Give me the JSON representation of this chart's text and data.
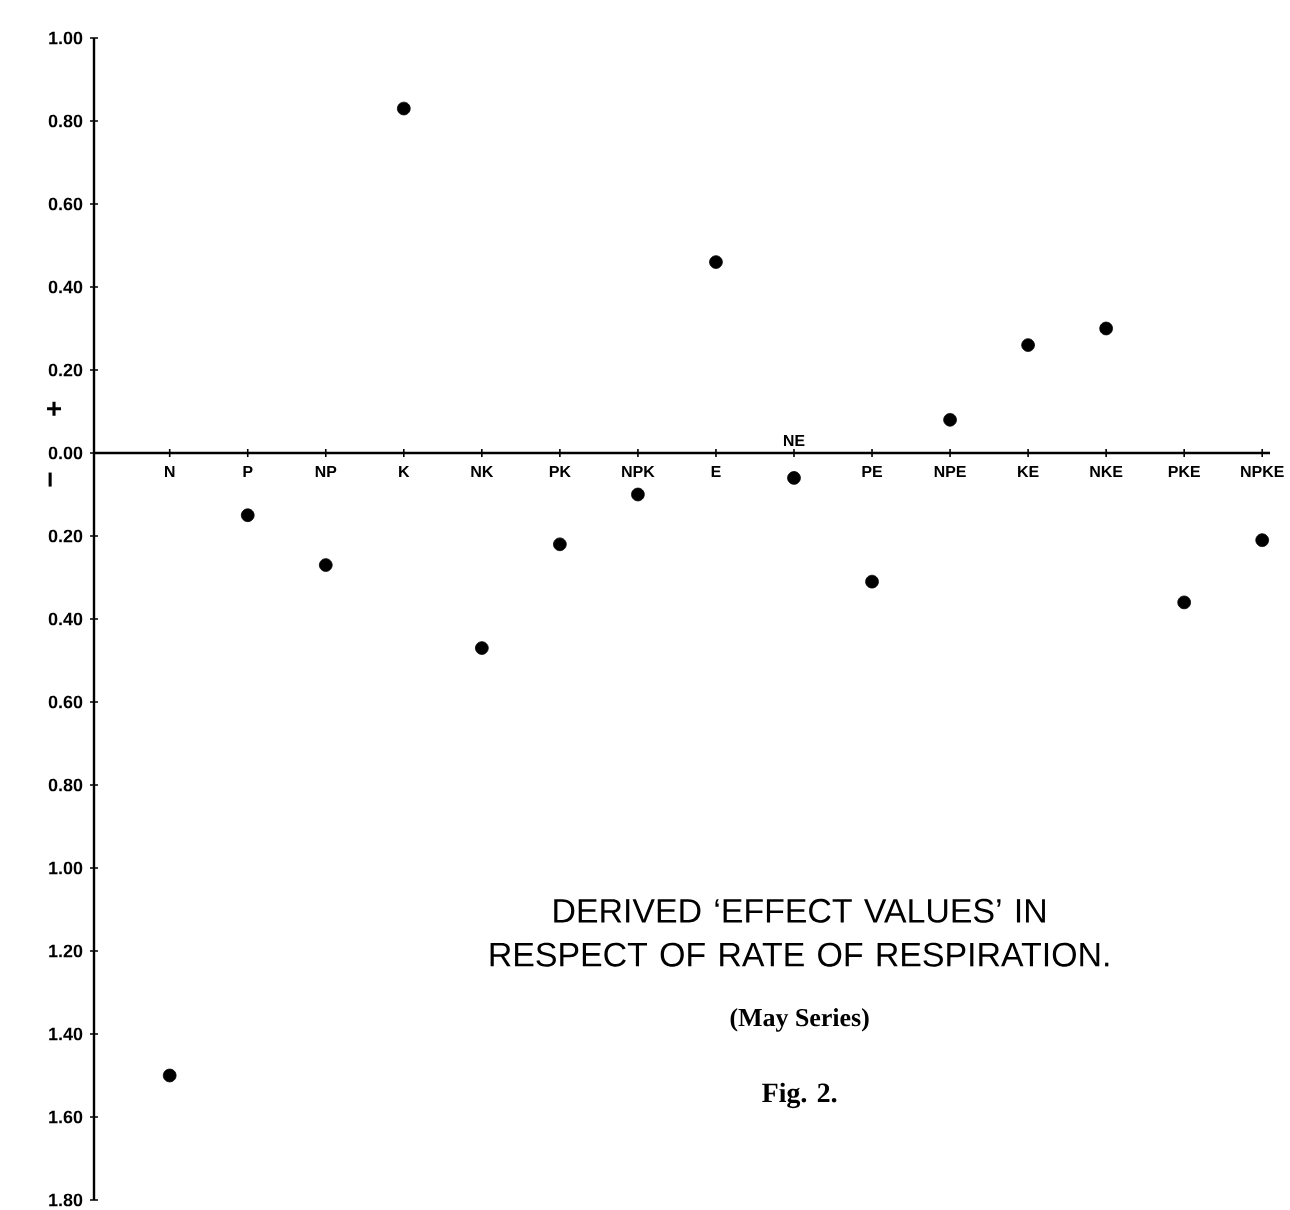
{
  "chart_data": {
    "type": "scatter",
    "title": "DERIVED ‘EFFECT VALUES’ IN RESPECT OF RATE OF RESPIRATION.",
    "subtitle": "(May Series)",
    "annotations": [
      "Fig. 2.",
      "+",
      "−"
    ],
    "categories": [
      "N",
      "P",
      "NP",
      "K",
      "NK",
      "PK",
      "NPK",
      "E",
      "NE",
      "PE",
      "NPE",
      "KE",
      "NKE",
      "PKE",
      "NPKE"
    ],
    "values": [
      -1.5,
      -0.15,
      -0.27,
      0.83,
      -0.47,
      -0.22,
      -0.1,
      0.46,
      -0.06,
      -0.31,
      0.08,
      0.26,
      0.3,
      -0.36,
      -0.21
    ],
    "color": "#000000",
    "marker": "circle",
    "ylim": [
      -1.8,
      1.0
    ],
    "yticks": [
      {
        "value": 1.0,
        "label": "1.00"
      },
      {
        "value": 0.8,
        "label": "0.80"
      },
      {
        "value": 0.6,
        "label": "0.60"
      },
      {
        "value": 0.4,
        "label": "0.40"
      },
      {
        "value": 0.2,
        "label": "0.20"
      },
      {
        "value": 0.0,
        "label": "0.00"
      },
      {
        "value": -0.2,
        "label": "0.20"
      },
      {
        "value": -0.4,
        "label": "0.40"
      },
      {
        "value": -0.6,
        "label": "0.60"
      },
      {
        "value": -0.8,
        "label": "0.80"
      },
      {
        "value": -1.0,
        "label": "1.00"
      },
      {
        "value": -1.2,
        "label": "1.20"
      },
      {
        "value": -1.4,
        "label": "1.40"
      },
      {
        "value": -1.6,
        "label": "1.60"
      },
      {
        "value": -1.8,
        "label": "1.80"
      }
    ]
  }
}
